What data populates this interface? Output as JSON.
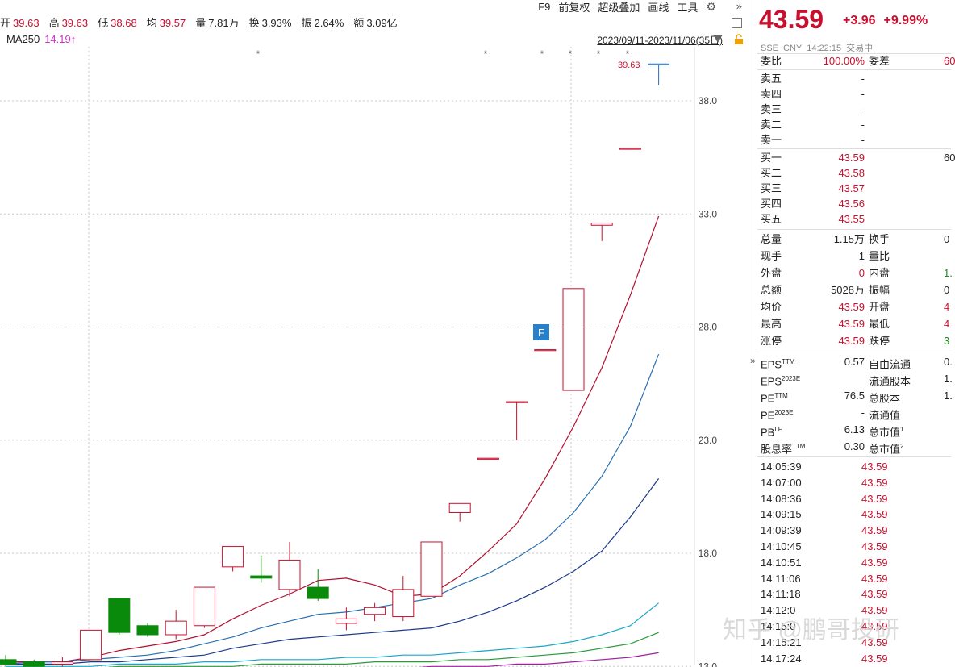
{
  "info_bar": [
    {
      "label": "开",
      "value": "39.63"
    },
    {
      "label": "高",
      "value": "39.63"
    },
    {
      "label": "低",
      "value": "38.68"
    },
    {
      "label": "均",
      "value": "39.57"
    },
    {
      "label": "量",
      "value": "7.81万"
    },
    {
      "label": "换",
      "value": "3.93%"
    },
    {
      "label": "振",
      "value": "2.64%"
    },
    {
      "label": "额",
      "value": "3.09亿"
    }
  ],
  "menu": [
    "F9",
    "前复权",
    "超级叠加",
    "画线",
    "工具"
  ],
  "ma_row": {
    "label": "MA250",
    "value": "14.19↑"
  },
  "date_range": "2023/09/11-2023/11/06(35日)",
  "chart": {
    "y_ticks": [
      "38.0",
      "33.0",
      "28.0",
      "23.0",
      "18.0",
      "13.0"
    ],
    "last_price_label": "39.63",
    "marker_label": "F",
    "star": "*",
    "colors": {
      "up": "#c8102e",
      "down": "#0a8a0a",
      "ma5": "#b01030",
      "ma10": "#2a6fb0",
      "ma20": "#1c3a8c",
      "ma60": "#1aa6c8",
      "ma120": "#2a9a3a",
      "ma250": "#a020a0"
    },
    "candles": [
      {
        "o": 13.3,
        "c": 13.1,
        "h": 13.5,
        "l": 13.0
      },
      {
        "o": 13.2,
        "c": 13.0,
        "h": 13.3,
        "l": 12.9
      },
      {
        "o": 13.1,
        "c": 13.2,
        "h": 13.4,
        "l": 13.0
      },
      {
        "o": 13.3,
        "c": 14.6,
        "h": 14.6,
        "l": 13.3
      },
      {
        "o": 16.0,
        "c": 14.5,
        "h": 16.0,
        "l": 14.4
      },
      {
        "o": 14.8,
        "c": 14.4,
        "h": 14.9,
        "l": 14.3
      },
      {
        "o": 14.4,
        "c": 15.0,
        "h": 15.5,
        "l": 14.2
      },
      {
        "o": 14.8,
        "c": 16.5,
        "h": 16.5,
        "l": 14.7
      },
      {
        "o": 17.4,
        "c": 18.3,
        "h": 18.3,
        "l": 17.2
      },
      {
        "o": 17.0,
        "c": 16.9,
        "h": 17.9,
        "l": 16.7
      },
      {
        "o": 16.4,
        "c": 17.7,
        "h": 18.5,
        "l": 16.1
      },
      {
        "o": 16.5,
        "c": 16.0,
        "h": 17.3,
        "l": 15.9
      },
      {
        "o": 14.9,
        "c": 15.1,
        "h": 15.6,
        "l": 14.6
      },
      {
        "o": 15.3,
        "c": 15.6,
        "h": 15.8,
        "l": 15.0
      },
      {
        "o": 15.2,
        "c": 16.4,
        "h": 17.0,
        "l": 15.0
      },
      {
        "o": 16.1,
        "c": 18.5,
        "h": 18.5,
        "l": 16.1
      },
      {
        "o": 19.8,
        "c": 20.2,
        "h": 20.2,
        "l": 19.4
      },
      {
        "o": 22.2,
        "c": 22.2,
        "h": 22.2,
        "l": 22.2
      },
      {
        "o": 24.7,
        "c": 24.7,
        "h": 24.7,
        "l": 23.0
      },
      {
        "o": 27.0,
        "c": 27.0,
        "h": 27.0,
        "l": 27.0
      },
      {
        "o": 25.2,
        "c": 29.7,
        "h": 29.7,
        "l": 25.2
      },
      {
        "o": 32.5,
        "c": 32.6,
        "h": 32.6,
        "l": 31.8
      },
      {
        "o": 35.9,
        "c": 35.9,
        "h": 35.9,
        "l": 35.9
      },
      {
        "o": 39.63,
        "c": 39.63,
        "h": 39.63,
        "l": 38.68
      }
    ],
    "ma_lines": [
      {
        "name": "ma5",
        "values": [
          13.2,
          13.2,
          13.2,
          13.4,
          13.7,
          13.9,
          14.1,
          14.4,
          15.1,
          15.7,
          16.2,
          16.8,
          16.9,
          16.6,
          16.1,
          16.2,
          17.0,
          18.1,
          19.3,
          21.3,
          23.6,
          26.2,
          29.4,
          32.9
        ]
      },
      {
        "name": "ma10",
        "values": [
          13.1,
          13.2,
          13.2,
          13.3,
          13.4,
          13.5,
          13.7,
          14.0,
          14.3,
          14.7,
          15.0,
          15.3,
          15.4,
          15.6,
          15.8,
          16.0,
          16.6,
          17.1,
          17.8,
          18.6,
          19.8,
          21.4,
          23.6,
          26.8
        ]
      },
      {
        "name": "ma20",
        "values": [
          13.1,
          13.1,
          13.1,
          13.2,
          13.2,
          13.3,
          13.4,
          13.5,
          13.8,
          14.0,
          14.2,
          14.3,
          14.4,
          14.5,
          14.6,
          14.7,
          15.0,
          15.4,
          15.9,
          16.5,
          17.2,
          18.1,
          19.6,
          21.3
        ]
      },
      {
        "name": "ma60",
        "values": [
          13.0,
          13.0,
          13.0,
          13.0,
          13.1,
          13.1,
          13.1,
          13.2,
          13.2,
          13.3,
          13.3,
          13.3,
          13.4,
          13.4,
          13.5,
          13.5,
          13.6,
          13.7,
          13.8,
          13.9,
          14.1,
          14.4,
          14.8,
          15.8
        ]
      },
      {
        "name": "ma120",
        "values": [
          12.9,
          12.9,
          12.9,
          12.9,
          13.0,
          13.0,
          13.0,
          13.0,
          13.0,
          13.1,
          13.1,
          13.1,
          13.1,
          13.2,
          13.2,
          13.2,
          13.3,
          13.3,
          13.4,
          13.5,
          13.6,
          13.8,
          14.0,
          14.5
        ]
      },
      {
        "name": "ma250",
        "values": [
          12.6,
          12.6,
          12.6,
          12.7,
          12.7,
          12.7,
          12.7,
          12.8,
          12.8,
          12.8,
          12.8,
          12.9,
          12.9,
          12.9,
          12.9,
          13.0,
          13.0,
          13.0,
          13.1,
          13.1,
          13.2,
          13.3,
          13.4,
          13.6
        ]
      }
    ]
  },
  "panel": {
    "price": "43.59",
    "change": "+3.96",
    "change_pct": "+9.99%",
    "exchange": "SSE",
    "currency": "CNY",
    "time": "14:22:15",
    "status": "交易中",
    "commission_ratio": {
      "label": "委比",
      "value": "100.00%",
      "label2": "委差",
      "value2": "60"
    },
    "asks": [
      {
        "label": "卖五",
        "price": "-"
      },
      {
        "label": "卖四",
        "price": "-"
      },
      {
        "label": "卖三",
        "price": "-"
      },
      {
        "label": "卖二",
        "price": "-"
      },
      {
        "label": "卖一",
        "price": "-"
      }
    ],
    "bids": [
      {
        "label": "买一",
        "price": "43.59",
        "vol": "60"
      },
      {
        "label": "买二",
        "price": "43.58",
        "vol": ""
      },
      {
        "label": "买三",
        "price": "43.57",
        "vol": ""
      },
      {
        "label": "买四",
        "price": "43.56",
        "vol": ""
      },
      {
        "label": "买五",
        "price": "43.55",
        "vol": ""
      }
    ],
    "stats": [
      {
        "l1": "总量",
        "v1": "1.15万",
        "c1": "",
        "l2": "换手",
        "v2": "0",
        "c2": ""
      },
      {
        "l1": "现手",
        "v1": "1",
        "c1": "",
        "l2": "量比",
        "v2": "",
        "c2": ""
      },
      {
        "l1": "外盘",
        "v1": "0",
        "c1": "red",
        "l2": "内盘",
        "v2": "1.",
        "c2": "green"
      },
      {
        "l1": "总额",
        "v1": "5028万",
        "c1": "",
        "l2": "振幅",
        "v2": "0",
        "c2": ""
      },
      {
        "l1": "均价",
        "v1": "43.59",
        "c1": "red",
        "l2": "开盘",
        "v2": "4",
        "c2": "red"
      },
      {
        "l1": "最高",
        "v1": "43.59",
        "c1": "red",
        "l2": "最低",
        "v2": "4",
        "c2": "red"
      },
      {
        "l1": "涨停",
        "v1": "43.59",
        "c1": "red",
        "l2": "跌停",
        "v2": "3",
        "c2": "green"
      }
    ],
    "fundamentals": [
      {
        "l1": "EPS",
        "s1": "TTM",
        "v1": "0.57",
        "l2": "自由流通",
        "s2": "",
        "v2": "0."
      },
      {
        "l1": "EPS",
        "s1": "2023E",
        "v1": "",
        "l2": "流通股本",
        "s2": "",
        "v2": "1."
      },
      {
        "l1": "PE",
        "s1": "TTM",
        "v1": "76.5",
        "l2": "总股本",
        "s2": "",
        "v2": "1."
      },
      {
        "l1": "PE",
        "s1": "2023E",
        "v1": "-",
        "l2": "流通值",
        "s2": "",
        "v2": ""
      },
      {
        "l1": "PB",
        "s1": "LF",
        "v1": "6.13",
        "l2": "总市值",
        "s2": "1",
        "v2": ""
      },
      {
        "l1": "股息率",
        "s1": "TTM",
        "v1": "0.30",
        "l2": "总市值",
        "s2": "2",
        "v2": ""
      }
    ],
    "ticks": [
      {
        "t": "14:05:39",
        "p": "43.59"
      },
      {
        "t": "14:07:00",
        "p": "43.59"
      },
      {
        "t": "14:08:36",
        "p": "43.59"
      },
      {
        "t": "14:09:15",
        "p": "43.59"
      },
      {
        "t": "14:09:39",
        "p": "43.59"
      },
      {
        "t": "14:10:45",
        "p": "43.59"
      },
      {
        "t": "14:10:51",
        "p": "43.59"
      },
      {
        "t": "14:11:06",
        "p": "43.59"
      },
      {
        "t": "14:11:18",
        "p": "43.59"
      },
      {
        "t": "14:12:0",
        "p": "43.59"
      },
      {
        "t": "14:15:0",
        "p": "43.59"
      },
      {
        "t": "14:15:21",
        "p": "43.59"
      },
      {
        "t": "14:17:24",
        "p": "43.59"
      }
    ]
  },
  "watermark": "知乎 @鹏哥投研"
}
